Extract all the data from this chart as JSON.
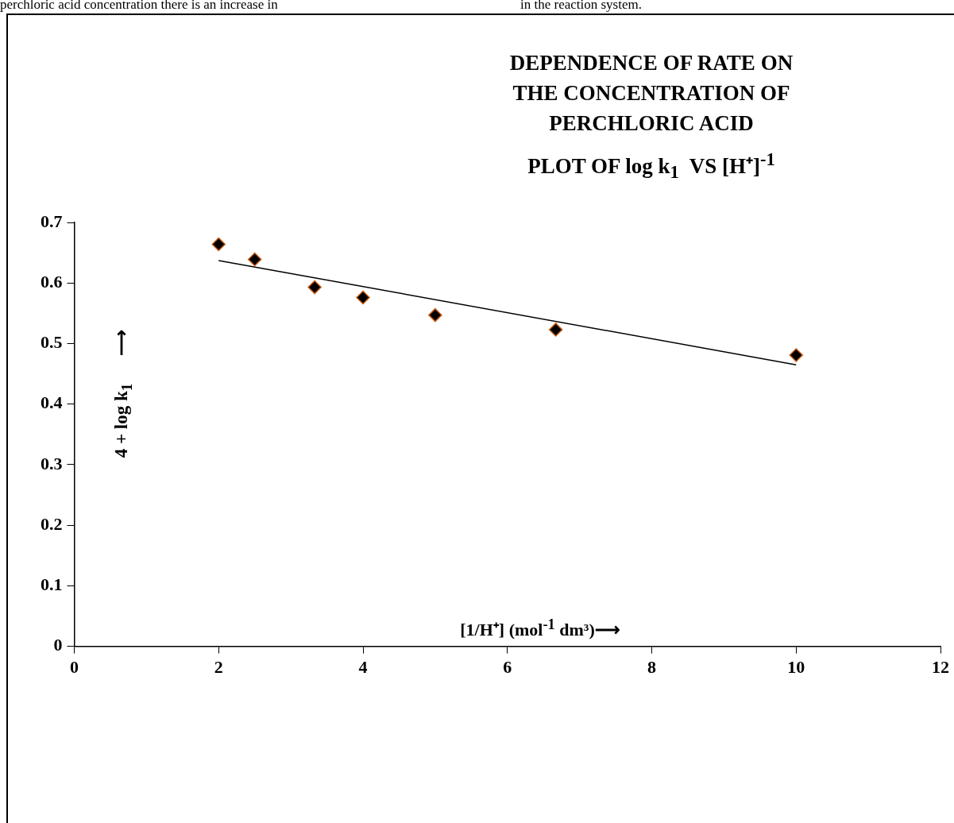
{
  "chart_data": {
    "type": "scatter",
    "title": "DEPENDENCE OF RATE ON THE CONCENTRATION OF PERCHLORIC ACID",
    "subtitle": "PLOT OF log k$_{1}$  VS [H⁺]$^{-1}$",
    "xlabel": "[1/H⁺] (mol$^{-1}$ dm³)⟶",
    "ylabel": "4 + log k$_{1}$      ⟶",
    "annotations": [
      "perchloric acid concentration there is an increase in",
      "in the reaction system."
    ],
    "x": [
      2,
      2.5,
      3.33,
      4,
      5,
      6.67,
      10
    ],
    "series": [
      {
        "type": "scatter",
        "color": "#000000",
        "values": [
          0.664,
          0.639,
          0.593,
          0.576,
          0.547,
          0.523,
          0.481
        ]
      },
      {
        "type": "line",
        "color": "#000000",
        "x": [
          2,
          10
        ],
        "values": [
          0.637,
          0.465
        ],
        "marker": "none"
      }
    ],
    "marker": "diamond",
    "xlim": [
      0,
      12
    ],
    "xticks": [
      0,
      2,
      4,
      6,
      8,
      10,
      12
    ],
    "ylim": [
      0,
      0.7
    ],
    "yticks": [
      0,
      0.1,
      0.2,
      0.3,
      0.4,
      0.5,
      0.6,
      0.7
    ],
    "grid": false
  }
}
